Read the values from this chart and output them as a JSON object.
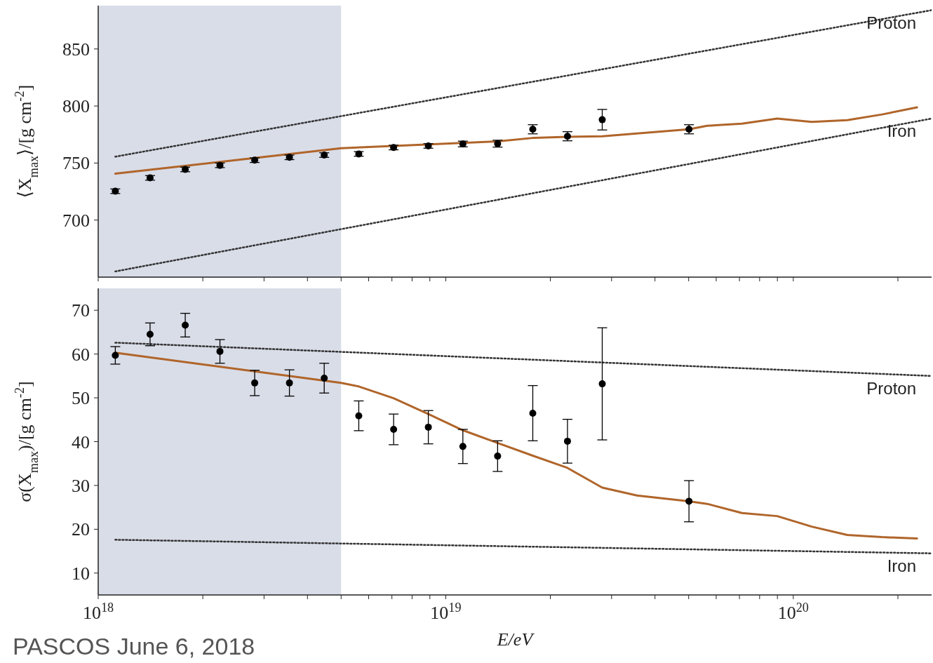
{
  "chart_data": [
    {
      "type": "scatter",
      "ylabel": "⟨X$_{max}$⟩/[g cm$^{-2}$]",
      "log": "x",
      "tick_labels": "y",
      "xlim": [
        1e+18,
        2.5e+20
      ],
      "xticks": [
        {
          "value": 1e+18,
          "label": null
        },
        {
          "value": 2e+18,
          "label": null
        },
        {
          "value": 3e+18,
          "label": null
        },
        {
          "value": 4e+18,
          "label": null
        },
        {
          "value": 5e+18,
          "label": null
        },
        {
          "value": 6e+18,
          "label": null
        },
        {
          "value": 7e+18,
          "label": null
        },
        {
          "value": 8e+18,
          "label": null
        },
        {
          "value": 9e+18,
          "label": null
        },
        {
          "value": 1e+19,
          "label": null
        },
        {
          "value": 2e+19,
          "label": null
        },
        {
          "value": 3e+19,
          "label": null
        },
        {
          "value": 4e+19,
          "label": null
        },
        {
          "value": 5e+19,
          "label": null
        },
        {
          "value": 6e+19,
          "label": null
        },
        {
          "value": 7e+19,
          "label": null
        },
        {
          "value": 8e+19,
          "label": null
        },
        {
          "value": 9e+19,
          "label": null
        },
        {
          "value": 1e+20,
          "label": null
        },
        {
          "value": 2e+20,
          "label": null
        }
      ],
      "ylim": [
        650,
        888
      ],
      "yticks": [
        700,
        750,
        800,
        850
      ],
      "bands": [
        {
          "axis": "x",
          "from": 1e+18,
          "to": 5e+18,
          "color": "#d9dde8"
        }
      ],
      "series": [
        {
          "type": "line",
          "name": "Proton",
          "color": "#333333",
          "line_style": "dotted",
          "x": [
            1.12e+18,
            2.5e+20
          ],
          "values": [
            755.6,
            884
          ]
        },
        {
          "type": "line",
          "name": "Iron",
          "color": "#333333",
          "line_style": "dotted",
          "x": [
            1.12e+18,
            2.5e+20
          ],
          "values": [
            655,
            789
          ]
        },
        {
          "type": "line",
          "color": "#b0652a",
          "line_style": "solid",
          "x": [
            1.12e+18,
            5e+18,
            7.08e+18,
            1.41e+19,
            1.78e+19,
            2.24e+19,
            2.82e+19,
            5.01e+19,
            5.65e+19,
            7.12e+19,
            8.99e+19,
            1.13e+20,
            1.43e+20,
            1.8e+20,
            2.27e+20
          ],
          "values": [
            740.7,
            763,
            765,
            769,
            772,
            773,
            773.5,
            779.6,
            782.7,
            784.5,
            789,
            786,
            787.6,
            792.6,
            798.8
          ]
        },
        {
          "type": "scatter",
          "color": "#000000",
          "marker": "circle",
          "x": [
            1.12e+18,
            1.41e+18,
            1.78e+18,
            2.24e+18,
            2.82e+18,
            3.55e+18,
            4.47e+18,
            5.62e+18,
            7.08e+18,
            8.91e+18,
            1.12e+19,
            1.41e+19,
            1.78e+19,
            2.24e+19,
            2.82e+19,
            5.01e+19
          ],
          "values": [
            725.3,
            737,
            744.4,
            748,
            752.5,
            755,
            757,
            758,
            763.6,
            765,
            766.7,
            767,
            779.6,
            773.5,
            788,
            779.6
          ],
          "errors": [
            2,
            2,
            2,
            2,
            2,
            2,
            2,
            2,
            2,
            2,
            2.5,
            3,
            4,
            4,
            9,
            4
          ]
        }
      ]
    },
    {
      "type": "scatter",
      "ylabel": "σ(X$_{max}$)/[g cm$^{-2}$]",
      "xlabel": "E/eV",
      "log": "x",
      "xlim": [
        1e+18,
        2.5e+20
      ],
      "xticks": [
        {
          "value": 1e+18,
          "label": "10$^{18}$"
        },
        {
          "value": 2e+18,
          "label": null
        },
        {
          "value": 3e+18,
          "label": null
        },
        {
          "value": 4e+18,
          "label": null
        },
        {
          "value": 5e+18,
          "label": null
        },
        {
          "value": 6e+18,
          "label": null
        },
        {
          "value": 7e+18,
          "label": null
        },
        {
          "value": 8e+18,
          "label": null
        },
        {
          "value": 9e+18,
          "label": null
        },
        {
          "value": 1e+19,
          "label": "10$^{19}$"
        },
        {
          "value": 2e+19,
          "label": null
        },
        {
          "value": 3e+19,
          "label": null
        },
        {
          "value": 4e+19,
          "label": null
        },
        {
          "value": 5e+19,
          "label": null
        },
        {
          "value": 6e+19,
          "label": null
        },
        {
          "value": 7e+19,
          "label": null
        },
        {
          "value": 8e+19,
          "label": null
        },
        {
          "value": 9e+19,
          "label": null
        },
        {
          "value": 1e+20,
          "label": "10$^{20}$"
        },
        {
          "value": 2e+20,
          "label": null
        }
      ],
      "ylim": [
        5,
        75
      ],
      "yticks": [
        10,
        20,
        30,
        40,
        50,
        60,
        70
      ],
      "bands": [
        {
          "axis": "x",
          "from": 1e+18,
          "to": 5e+18,
          "color": "#d9dde8"
        }
      ],
      "annotations": [
        "PASCOS June 6, 2018"
      ],
      "series": [
        {
          "type": "line",
          "name": "Proton",
          "color": "#333333",
          "line_style": "dotted",
          "x": [
            1.12e+18,
            2.5e+20
          ],
          "values": [
            62.6,
            55
          ]
        },
        {
          "type": "line",
          "name": "Iron",
          "color": "#333333",
          "line_style": "dotted",
          "x": [
            1.12e+18,
            2.5e+20
          ],
          "values": [
            17.6,
            14.5
          ]
        },
        {
          "type": "line",
          "color": "#b0652a",
          "line_style": "solid",
          "x": [
            1.12e+18,
            5e+18,
            5.62e+18,
            7.08e+18,
            8.91e+18,
            1.12e+19,
            1.41e+19,
            1.78e+19,
            2.24e+19,
            2.82e+19,
            3.55e+19,
            5.01e+19,
            5.65e+19,
            7.12e+19,
            8.99e+19,
            1.13e+20,
            1.43e+20,
            1.8e+20,
            2.27e+20
          ],
          "values": [
            60.3,
            53.4,
            52.6,
            49.9,
            46.3,
            42.6,
            39.7,
            36.8,
            34,
            29.5,
            27.7,
            26.4,
            25.8,
            23.7,
            23,
            20.6,
            18.7,
            18.2,
            17.9
          ]
        },
        {
          "type": "scatter",
          "color": "#000000",
          "marker": "circle",
          "x": [
            1.12e+18,
            1.41e+18,
            1.78e+18,
            2.24e+18,
            2.82e+18,
            3.55e+18,
            4.47e+18,
            5.62e+18,
            7.08e+18,
            8.91e+18,
            1.12e+19,
            1.41e+19,
            1.78e+19,
            2.24e+19,
            2.82e+19,
            5.01e+19
          ],
          "values": [
            59.7,
            64.5,
            66.6,
            60.6,
            53.4,
            53.4,
            54.5,
            45.9,
            42.8,
            43.3,
            38.9,
            36.7,
            46.5,
            40.1,
            53.2,
            26.4
          ],
          "errors": [
            2,
            2.6,
            2.7,
            2.7,
            2.9,
            3,
            3.4,
            3.4,
            3.5,
            3.8,
            3.9,
            3.5,
            6.3,
            5,
            12.8,
            4.7
          ]
        }
      ]
    }
  ]
}
